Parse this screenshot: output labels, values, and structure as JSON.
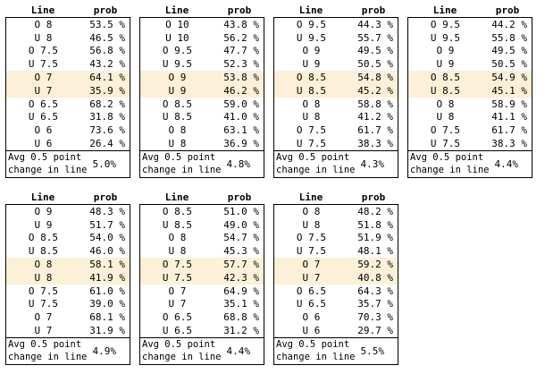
{
  "colors": {
    "highlight": "#fcf0d8",
    "border": "#000000",
    "background": "#ffffff"
  },
  "columns": {
    "line": "Line",
    "prob": "prob"
  },
  "avg_label": {
    "line1": "Avg 0.5 point",
    "line2": "change in line"
  },
  "tables": [
    {
      "avg": "5.0%",
      "rows": [
        {
          "line": "O 8",
          "prob": "53.5 %",
          "hl": false
        },
        {
          "line": "U 8",
          "prob": "46.5 %",
          "hl": false
        },
        {
          "line": "O 7.5",
          "prob": "56.8 %",
          "hl": false
        },
        {
          "line": "U 7.5",
          "prob": "43.2 %",
          "hl": false
        },
        {
          "line": "O 7",
          "prob": "64.1 %",
          "hl": true
        },
        {
          "line": "U 7",
          "prob": "35.9 %",
          "hl": true
        },
        {
          "line": "O 6.5",
          "prob": "68.2 %",
          "hl": false
        },
        {
          "line": "U 6.5",
          "prob": "31.8 %",
          "hl": false
        },
        {
          "line": "O 6",
          "prob": "73.6 %",
          "hl": false
        },
        {
          "line": "U 6",
          "prob": "26.4 %",
          "hl": false
        }
      ]
    },
    {
      "avg": "4.8%",
      "rows": [
        {
          "line": "O 10",
          "prob": "43.8 %",
          "hl": false
        },
        {
          "line": "U 10",
          "prob": "56.2 %",
          "hl": false
        },
        {
          "line": "O 9.5",
          "prob": "47.7 %",
          "hl": false
        },
        {
          "line": "U 9.5",
          "prob": "52.3 %",
          "hl": false
        },
        {
          "line": "O 9",
          "prob": "53.8 %",
          "hl": true
        },
        {
          "line": "U 9",
          "prob": "46.2 %",
          "hl": true
        },
        {
          "line": "O 8.5",
          "prob": "59.0 %",
          "hl": false
        },
        {
          "line": "U 8.5",
          "prob": "41.0 %",
          "hl": false
        },
        {
          "line": "O 8",
          "prob": "63.1 %",
          "hl": false
        },
        {
          "line": "U 8",
          "prob": "36.9 %",
          "hl": false
        }
      ]
    },
    {
      "avg": "4.3%",
      "rows": [
        {
          "line": "O 9.5",
          "prob": "44.3 %",
          "hl": false
        },
        {
          "line": "U 9.5",
          "prob": "55.7 %",
          "hl": false
        },
        {
          "line": "O 9",
          "prob": "49.5 %",
          "hl": false
        },
        {
          "line": "U 9",
          "prob": "50.5 %",
          "hl": false
        },
        {
          "line": "O 8.5",
          "prob": "54.8 %",
          "hl": true
        },
        {
          "line": "U 8.5",
          "prob": "45.2 %",
          "hl": true
        },
        {
          "line": "O 8",
          "prob": "58.8 %",
          "hl": false
        },
        {
          "line": "U 8",
          "prob": "41.2 %",
          "hl": false
        },
        {
          "line": "O 7.5",
          "prob": "61.7 %",
          "hl": false
        },
        {
          "line": "U 7.5",
          "prob": "38.3 %",
          "hl": false
        }
      ]
    },
    {
      "avg": "4.4%",
      "rows": [
        {
          "line": "O 9.5",
          "prob": "44.2 %",
          "hl": false
        },
        {
          "line": "U 9.5",
          "prob": "55.8 %",
          "hl": false
        },
        {
          "line": "O 9",
          "prob": "49.5 %",
          "hl": false
        },
        {
          "line": "U 9",
          "prob": "50.5 %",
          "hl": false
        },
        {
          "line": "O 8.5",
          "prob": "54.9 %",
          "hl": true
        },
        {
          "line": "U 8.5",
          "prob": "45.1 %",
          "hl": true
        },
        {
          "line": "O 8",
          "prob": "58.9 %",
          "hl": false
        },
        {
          "line": "U 8",
          "prob": "41.1 %",
          "hl": false
        },
        {
          "line": "O 7.5",
          "prob": "61.7 %",
          "hl": false
        },
        {
          "line": "U 7.5",
          "prob": "38.3 %",
          "hl": false
        }
      ]
    },
    {
      "avg": "4.9%",
      "rows": [
        {
          "line": "O 9",
          "prob": "48.3 %",
          "hl": false
        },
        {
          "line": "U 9",
          "prob": "51.7 %",
          "hl": false
        },
        {
          "line": "O 8.5",
          "prob": "54.0 %",
          "hl": false
        },
        {
          "line": "U 8.5",
          "prob": "46.0 %",
          "hl": false
        },
        {
          "line": "O 8",
          "prob": "58.1 %",
          "hl": true
        },
        {
          "line": "U 8",
          "prob": "41.9 %",
          "hl": true
        },
        {
          "line": "O 7.5",
          "prob": "61.0 %",
          "hl": false
        },
        {
          "line": "U 7.5",
          "prob": "39.0 %",
          "hl": false
        },
        {
          "line": "O 7",
          "prob": "68.1 %",
          "hl": false
        },
        {
          "line": "U 7",
          "prob": "31.9 %",
          "hl": false
        }
      ]
    },
    {
      "avg": "4.4%",
      "rows": [
        {
          "line": "O 8.5",
          "prob": "51.0 %",
          "hl": false
        },
        {
          "line": "U 8.5",
          "prob": "49.0 %",
          "hl": false
        },
        {
          "line": "O 8",
          "prob": "54.7 %",
          "hl": false
        },
        {
          "line": "U 8",
          "prob": "45.3 %",
          "hl": false
        },
        {
          "line": "O 7.5",
          "prob": "57.7 %",
          "hl": true
        },
        {
          "line": "U 7.5",
          "prob": "42.3 %",
          "hl": true
        },
        {
          "line": "O 7",
          "prob": "64.9 %",
          "hl": false
        },
        {
          "line": "U 7",
          "prob": "35.1 %",
          "hl": false
        },
        {
          "line": "O 6.5",
          "prob": "68.8 %",
          "hl": false
        },
        {
          "line": "U 6.5",
          "prob": "31.2 %",
          "hl": false
        }
      ]
    },
    {
      "avg": "5.5%",
      "rows": [
        {
          "line": "O 8",
          "prob": "48.2 %",
          "hl": false
        },
        {
          "line": "U 8",
          "prob": "51.8 %",
          "hl": false
        },
        {
          "line": "O 7.5",
          "prob": "51.9 %",
          "hl": false
        },
        {
          "line": "U 7.5",
          "prob": "48.1 %",
          "hl": false
        },
        {
          "line": "O 7",
          "prob": "59.2 %",
          "hl": true
        },
        {
          "line": "U 7",
          "prob": "40.8 %",
          "hl": true
        },
        {
          "line": "O 6.5",
          "prob": "64.3 %",
          "hl": false
        },
        {
          "line": "U 6.5",
          "prob": "35.7 %",
          "hl": false
        },
        {
          "line": "O 6",
          "prob": "70.3 %",
          "hl": false
        },
        {
          "line": "U 6",
          "prob": "29.7 %",
          "hl": false
        }
      ]
    }
  ]
}
